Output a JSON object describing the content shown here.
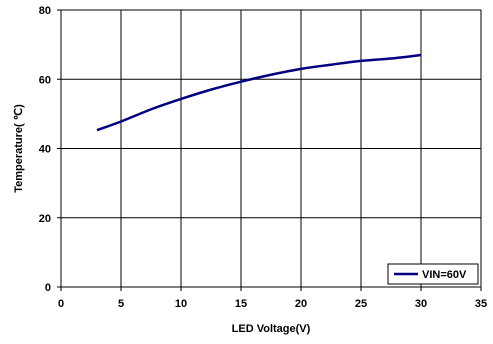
{
  "chart_data": {
    "type": "line",
    "xlabel": "LED Voltage(V)",
    "ylabel": "Temperature(  ℃)",
    "xlim": [
      0,
      35
    ],
    "ylim": [
      0,
      80
    ],
    "x_ticks": [
      "0",
      "5",
      "10",
      "15",
      "20",
      "25",
      "30",
      "35"
    ],
    "y_ticks": [
      "0",
      "20",
      "40",
      "60",
      "80"
    ],
    "grid": true,
    "legend_position": "bottom-right",
    "series": [
      {
        "name": "VIN=60V",
        "color": "#000080",
        "x": [
          3,
          5,
          7.5,
          10,
          12.5,
          15,
          17.5,
          20,
          22.5,
          25,
          27.5,
          30
        ],
        "y": [
          45.3,
          47.8,
          51.3,
          54.3,
          57,
          59.3,
          61.3,
          63,
          64.2,
          65.3,
          66,
          67
        ]
      }
    ]
  }
}
